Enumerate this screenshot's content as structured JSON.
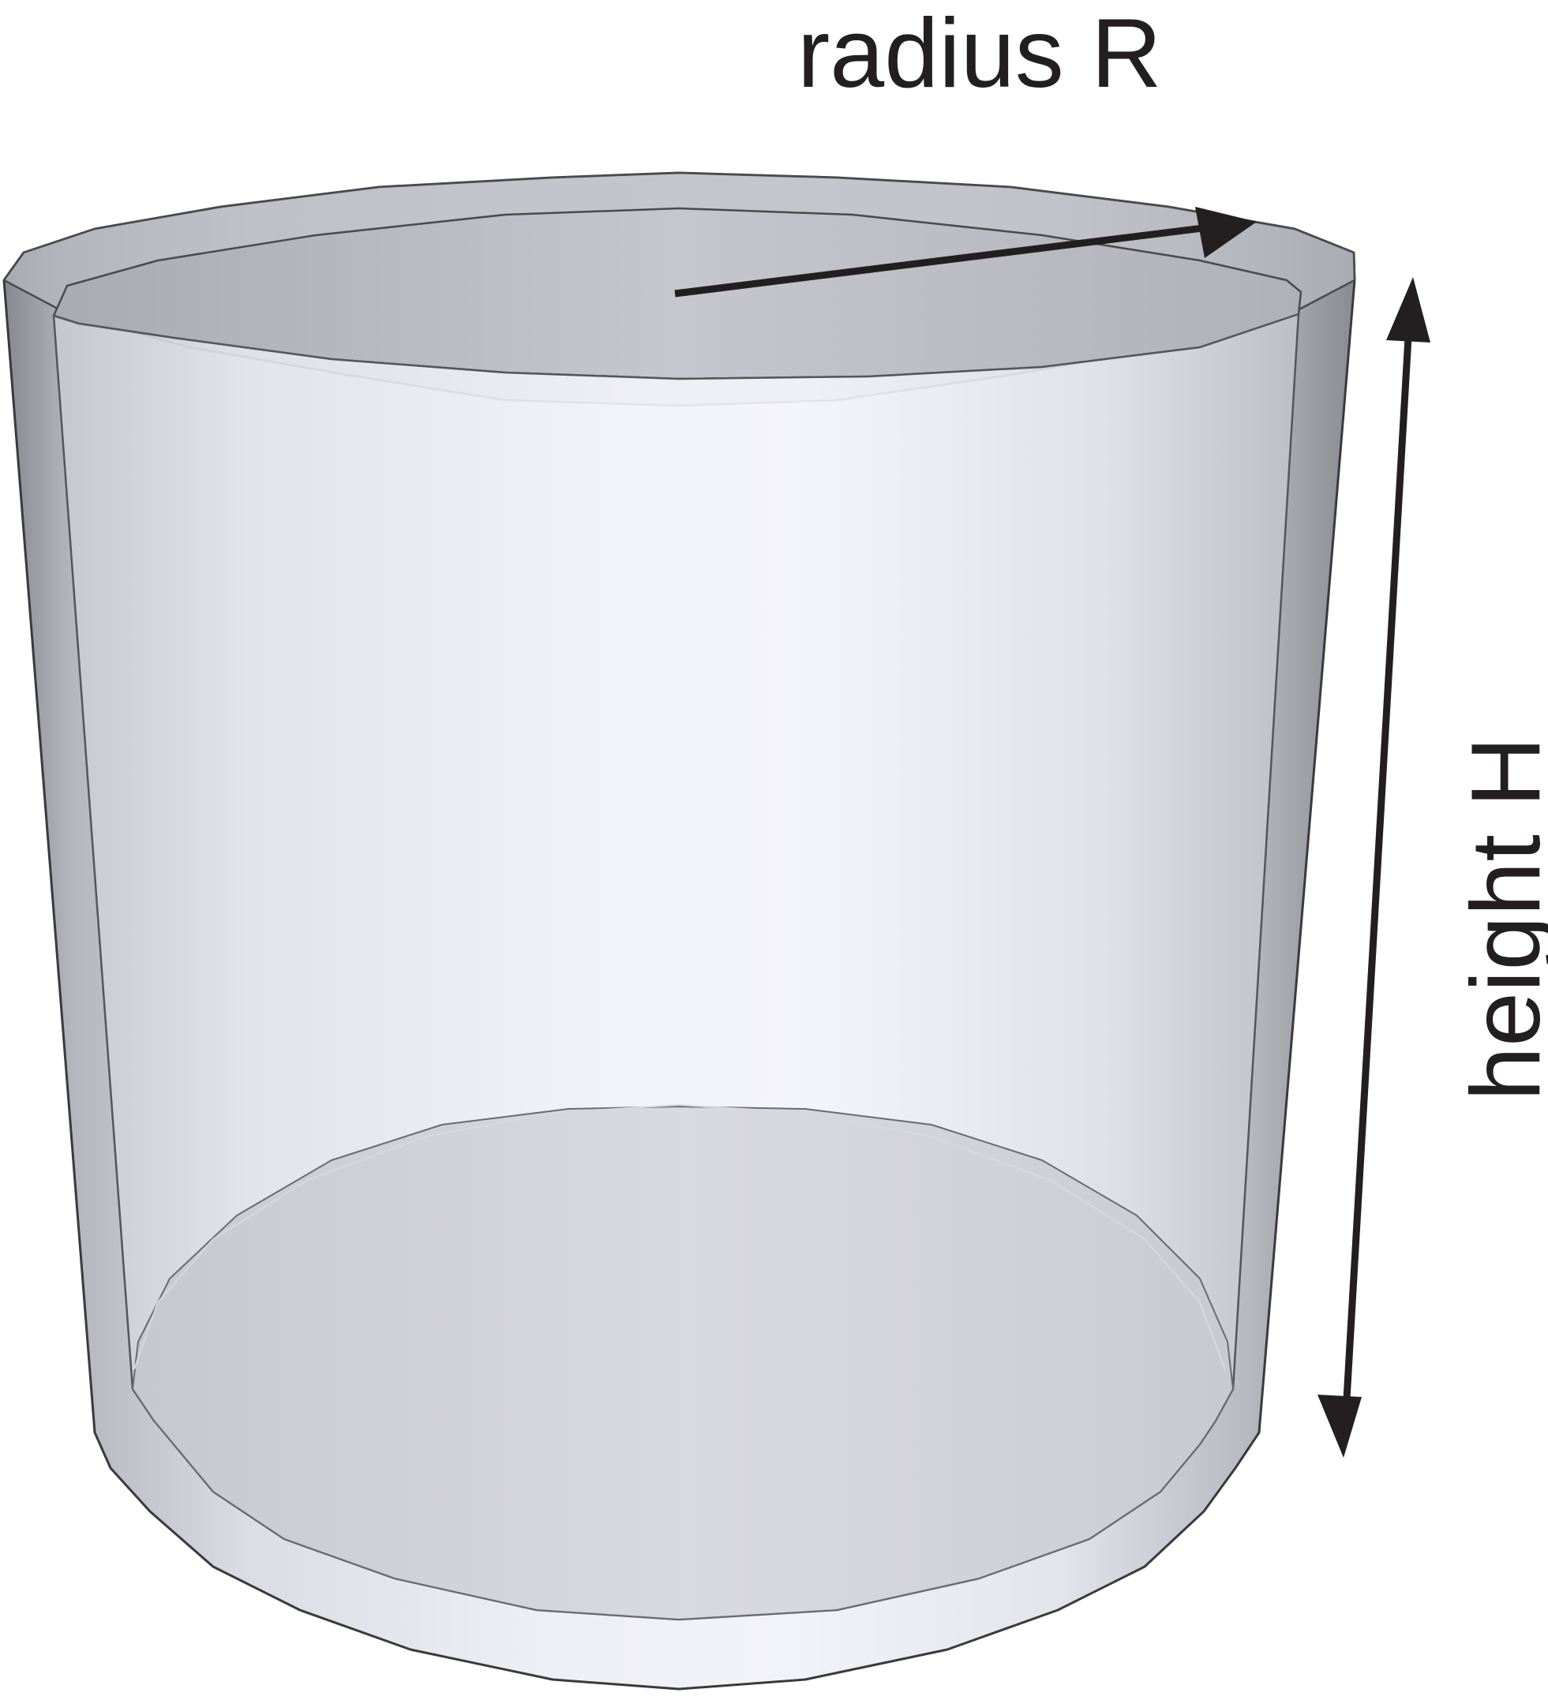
{
  "labels": {
    "radius": "radius R",
    "height": "height H"
  },
  "colors": {
    "background": "#ffffff",
    "ink": "#231f20",
    "edge": "#555558",
    "glass_light": "#f2f3f8",
    "glass_dark": "#8a8b93"
  }
}
